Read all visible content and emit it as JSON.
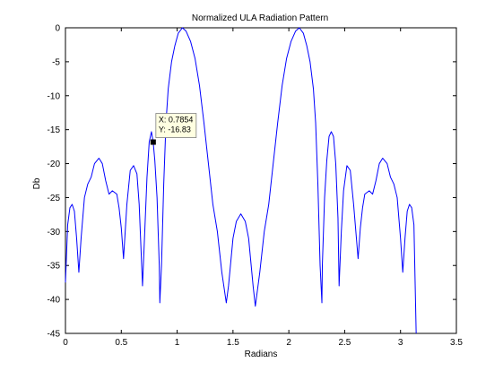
{
  "window": {
    "background": "#ffffff"
  },
  "chart_data": {
    "type": "line",
    "title": "Normalized ULA Radiation Pattern",
    "xlabel": "Radians",
    "ylabel": "Db",
    "xlim": [
      0,
      3.5
    ],
    "ylim": [
      -45,
      0
    ],
    "xticks": [
      0,
      0.5,
      1,
      1.5,
      2,
      2.5,
      3,
      3.5
    ],
    "xtick_labels": [
      "0",
      "0.5",
      "1",
      "1.5",
      "2",
      "2.5",
      "3",
      "3.5"
    ],
    "yticks": [
      0,
      -5,
      -10,
      -15,
      -20,
      -25,
      -30,
      -35,
      -40,
      -45
    ],
    "ytick_labels": [
      "0",
      "-5",
      "-10",
      "-15",
      "-20",
      "-25",
      "-30",
      "-35",
      "-40",
      "-45"
    ],
    "grid": false,
    "series": [
      {
        "color": "#0000ff",
        "points": [
          [
            0.0,
            -37.5
          ],
          [
            0.02,
            -29.0
          ],
          [
            0.04,
            -26.5
          ],
          [
            0.06,
            -26.0
          ],
          [
            0.08,
            -27.0
          ],
          [
            0.1,
            -31.0
          ],
          [
            0.12,
            -36.0
          ],
          [
            0.14,
            -31.0
          ],
          [
            0.17,
            -25.0
          ],
          [
            0.2,
            -23.0
          ],
          [
            0.23,
            -22.0
          ],
          [
            0.26,
            -20.0
          ],
          [
            0.3,
            -19.2
          ],
          [
            0.33,
            -20.0
          ],
          [
            0.36,
            -22.5
          ],
          [
            0.39,
            -24.5
          ],
          [
            0.42,
            -24.0
          ],
          [
            0.46,
            -24.5
          ],
          [
            0.48,
            -26.5
          ],
          [
            0.5,
            -29.5
          ],
          [
            0.52,
            -34.0
          ],
          [
            0.55,
            -26.0
          ],
          [
            0.58,
            -21.0
          ],
          [
            0.61,
            -20.3
          ],
          [
            0.64,
            -21.5
          ],
          [
            0.66,
            -26.0
          ],
          [
            0.68,
            -34.0
          ],
          [
            0.69,
            -38.0
          ],
          [
            0.71,
            -30.0
          ],
          [
            0.73,
            -22.0
          ],
          [
            0.75,
            -16.8
          ],
          [
            0.77,
            -15.3
          ],
          [
            0.7854,
            -16.83
          ],
          [
            0.8,
            -19.5
          ],
          [
            0.82,
            -25.0
          ],
          [
            0.84,
            -35.0
          ],
          [
            0.845,
            -40.5
          ],
          [
            0.86,
            -35.0
          ],
          [
            0.88,
            -23.0
          ],
          [
            0.9,
            -14.0
          ],
          [
            0.92,
            -9.0
          ],
          [
            0.95,
            -5.0
          ],
          [
            0.98,
            -2.6
          ],
          [
            1.01,
            -0.8
          ],
          [
            1.047,
            0.0
          ],
          [
            1.08,
            -0.5
          ],
          [
            1.12,
            -2.0
          ],
          [
            1.16,
            -4.5
          ],
          [
            1.2,
            -8.5
          ],
          [
            1.24,
            -14.0
          ],
          [
            1.28,
            -20.0
          ],
          [
            1.32,
            -26.0
          ],
          [
            1.36,
            -30.0
          ],
          [
            1.4,
            -36.0
          ],
          [
            1.44,
            -40.5
          ],
          [
            1.46,
            -38.0
          ],
          [
            1.5,
            -31.0
          ],
          [
            1.53,
            -28.5
          ],
          [
            1.57,
            -27.4
          ],
          [
            1.61,
            -28.5
          ],
          [
            1.64,
            -31.0
          ],
          [
            1.68,
            -38.0
          ],
          [
            1.7,
            -41.0
          ],
          [
            1.74,
            -36.0
          ],
          [
            1.78,
            -30.0
          ],
          [
            1.82,
            -26.0
          ],
          [
            1.86,
            -20.0
          ],
          [
            1.9,
            -14.0
          ],
          [
            1.94,
            -8.5
          ],
          [
            1.98,
            -4.5
          ],
          [
            2.02,
            -2.0
          ],
          [
            2.06,
            -0.5
          ],
          [
            2.094,
            0.0
          ],
          [
            2.13,
            -0.8
          ],
          [
            2.16,
            -2.6
          ],
          [
            2.19,
            -5.0
          ],
          [
            2.22,
            -9.0
          ],
          [
            2.24,
            -14.0
          ],
          [
            2.26,
            -23.0
          ],
          [
            2.28,
            -35.0
          ],
          [
            2.296,
            -40.5
          ],
          [
            2.3,
            -35.0
          ],
          [
            2.32,
            -25.0
          ],
          [
            2.34,
            -19.5
          ],
          [
            2.36,
            -16.0
          ],
          [
            2.38,
            -15.3
          ],
          [
            2.4,
            -16.0
          ],
          [
            2.42,
            -20.0
          ],
          [
            2.44,
            -28.0
          ],
          [
            2.45,
            -38.0
          ],
          [
            2.47,
            -30.0
          ],
          [
            2.49,
            -24.0
          ],
          [
            2.52,
            -20.3
          ],
          [
            2.55,
            -21.0
          ],
          [
            2.58,
            -26.0
          ],
          [
            2.62,
            -34.0
          ],
          [
            2.64,
            -29.5
          ],
          [
            2.66,
            -26.5
          ],
          [
            2.68,
            -24.5
          ],
          [
            2.72,
            -24.0
          ],
          [
            2.75,
            -24.5
          ],
          [
            2.78,
            -22.5
          ],
          [
            2.81,
            -20.0
          ],
          [
            2.84,
            -19.2
          ],
          [
            2.88,
            -20.0
          ],
          [
            2.91,
            -22.0
          ],
          [
            2.94,
            -23.0
          ],
          [
            2.97,
            -25.0
          ],
          [
            3.0,
            -31.0
          ],
          [
            3.02,
            -36.0
          ],
          [
            3.04,
            -31.0
          ],
          [
            3.06,
            -27.0
          ],
          [
            3.08,
            -26.0
          ],
          [
            3.1,
            -26.5
          ],
          [
            3.12,
            -29.0
          ],
          [
            3.14,
            -45.0
          ]
        ]
      }
    ],
    "datatip": {
      "x": 0.7854,
      "y": -16.83,
      "lines": [
        "X: 0.7854",
        "Y: -16.83"
      ],
      "background": "#ffffe1"
    }
  }
}
